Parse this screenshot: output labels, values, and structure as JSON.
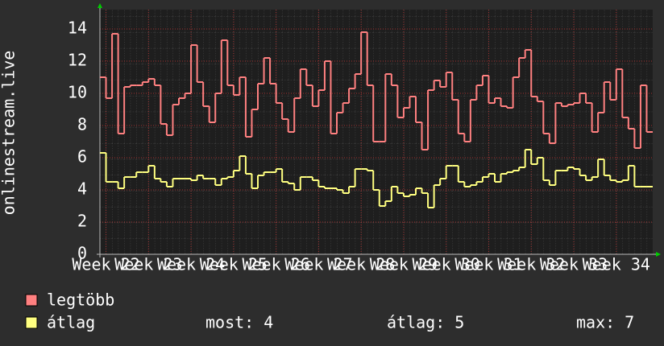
{
  "chart_data": {
    "type": "step",
    "y_label": "onlinestream.live",
    "x": [
      0,
      1,
      2,
      3,
      4,
      5,
      6,
      7,
      8,
      9,
      10,
      11,
      12,
      13,
      14,
      15,
      16,
      17,
      18,
      19,
      20,
      21,
      22,
      23,
      24,
      25,
      26,
      27,
      28,
      29,
      30,
      31,
      32,
      33,
      34,
      35,
      36,
      37,
      38,
      39,
      40,
      41,
      42,
      43,
      44,
      45,
      46,
      47,
      48,
      49,
      50,
      51,
      52,
      53,
      54,
      55,
      56,
      57,
      58,
      59,
      60,
      61,
      62,
      63,
      64,
      65,
      66,
      67,
      68,
      69,
      70,
      71,
      72,
      73,
      74,
      75,
      76,
      77,
      78,
      79,
      80,
      81,
      82,
      83,
      84,
      85,
      86,
      87,
      88,
      89,
      90
    ],
    "series": [
      {
        "name": "legtöbb",
        "color": "#ff8080",
        "values": [
          11,
          9.7,
          13.7,
          7.5,
          10.4,
          10.5,
          10.5,
          10.7,
          10.9,
          10.5,
          8.1,
          7.4,
          9.3,
          9.7,
          10,
          13,
          10.7,
          9.2,
          8.2,
          10,
          13.3,
          10.5,
          9.9,
          11,
          7.3,
          9,
          10.6,
          12.2,
          10.6,
          9.4,
          8.4,
          7.6,
          9.7,
          11.5,
          10.5,
          9.2,
          10.2,
          12,
          7.5,
          8.8,
          9.4,
          10.3,
          11.2,
          13.8,
          10.5,
          7,
          7,
          11.2,
          10.5,
          8.5,
          9.1,
          9.8,
          8.2,
          6.5,
          10.2,
          10.8,
          10.4,
          11.3,
          9.6,
          7.5,
          7,
          9.6,
          10.5,
          11.1,
          9.4,
          9.7,
          9.2,
          9.1,
          11,
          12.2,
          12.7,
          9.8,
          9.5,
          7.5,
          6.9,
          9.4,
          9.2,
          9.3,
          9.4,
          10,
          9.4,
          7.6,
          8.8,
          10.7,
          9.6,
          11.5,
          8.5,
          7.8,
          6.6,
          10.5,
          7.6
        ]
      },
      {
        "name": "átlag",
        "color": "#ffff80",
        "values": [
          6.3,
          4.5,
          4.5,
          4.1,
          4.8,
          4.8,
          5.1,
          5.1,
          5.5,
          4.7,
          4.5,
          4.2,
          4.7,
          4.7,
          4.7,
          4.6,
          4.9,
          4.7,
          4.7,
          4.3,
          4.7,
          4.8,
          5.2,
          6.1,
          5.0,
          4.1,
          4.9,
          5.1,
          5.1,
          5.3,
          4.5,
          4.4,
          4.0,
          4.8,
          4.8,
          4.6,
          4.2,
          4.1,
          4.1,
          4.0,
          3.8,
          4.2,
          5.3,
          5.3,
          5.2,
          4.0,
          3.0,
          3.3,
          4.2,
          3.8,
          3.6,
          3.7,
          4.1,
          3.8,
          2.9,
          4.3,
          4.7,
          5.5,
          5.5,
          4.5,
          4.2,
          4.3,
          4.5,
          4.8,
          5.0,
          4.5,
          5.0,
          5.1,
          5.2,
          5.4,
          6.5,
          5.6,
          6.0,
          4.6,
          4.3,
          5.2,
          5.2,
          5.4,
          5.3,
          4.9,
          4.6,
          4.8,
          5.9,
          4.9,
          4.6,
          4.5,
          4.6,
          5.5,
          4.2,
          4.2,
          4.2
        ]
      }
    ],
    "xlim": [
      0,
      91
    ],
    "xticks": [
      {
        "value": 1,
        "label": "Week 22"
      },
      {
        "value": 8,
        "label": "Week 23"
      },
      {
        "value": 15,
        "label": "Week 24"
      },
      {
        "value": 22,
        "label": "Week 25"
      },
      {
        "value": 29,
        "label": "Week 26"
      },
      {
        "value": 36,
        "label": "Week 27"
      },
      {
        "value": 43,
        "label": "Week 28"
      },
      {
        "value": 50,
        "label": "Week 29"
      },
      {
        "value": 57,
        "label": "Week 30"
      },
      {
        "value": 64,
        "label": "Week 31"
      },
      {
        "value": 71,
        "label": "Week 32"
      },
      {
        "value": 78,
        "label": "Week 33"
      },
      {
        "value": 85,
        "label": "Week 34"
      }
    ],
    "ylim": [
      0,
      15.2
    ],
    "yticks": [
      0,
      2,
      4,
      6,
      8,
      10,
      12,
      14
    ],
    "grid": true,
    "stats": [
      {
        "label": "most:",
        "value": 4
      },
      {
        "label": "átlag:",
        "value": 5
      },
      {
        "label": "max:",
        "value": 7
      }
    ]
  }
}
